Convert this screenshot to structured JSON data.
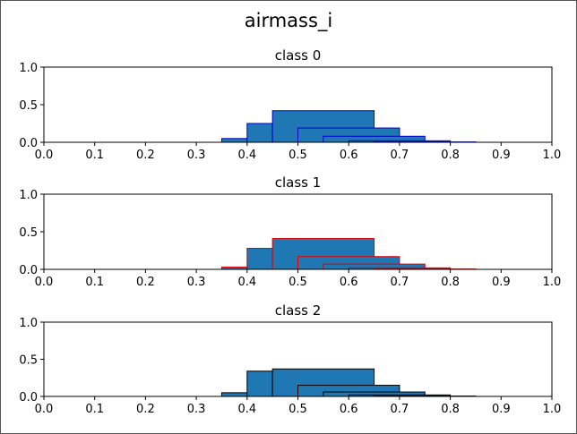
{
  "figure": {
    "suptitle": "airmass_i"
  },
  "chart_data": [
    {
      "type": "histogram",
      "title": "class 0",
      "xlim": [
        0,
        1
      ],
      "ylim": [
        0,
        1
      ],
      "xticks": [
        "0.0",
        "0.1",
        "0.2",
        "0.3",
        "0.4",
        "0.5",
        "0.6",
        "0.7",
        "0.8",
        "0.9",
        "1.0"
      ],
      "yticks": [
        "0.0",
        "0.5",
        "1.0"
      ],
      "fill_color": "#1f77b4",
      "edge_color": "#0000cd",
      "bars": [
        {
          "x0": 0.0,
          "x1": 0.05,
          "y": 0.0
        },
        {
          "x0": 0.05,
          "x1": 0.1,
          "y": 0.0
        },
        {
          "x0": 0.1,
          "x1": 0.15,
          "y": 0.0
        },
        {
          "x0": 0.15,
          "x1": 0.2,
          "y": 0.0
        },
        {
          "x0": 0.2,
          "x1": 0.25,
          "y": 0.0
        },
        {
          "x0": 0.25,
          "x1": 0.3,
          "y": 0.0
        },
        {
          "x0": 0.3,
          "x1": 0.35,
          "y": 0.0
        },
        {
          "x0": 0.35,
          "x1": 0.4,
          "y": 0.05
        },
        {
          "x0": 0.4,
          "x1": 0.45,
          "y": 0.25
        },
        {
          "x0": 0.45,
          "x1": 0.65,
          "y": 0.42
        },
        {
          "x0": 0.5,
          "x1": 0.7,
          "y": 0.19
        },
        {
          "x0": 0.55,
          "x1": 0.75,
          "y": 0.08
        },
        {
          "x0": 0.6,
          "x1": 0.8,
          "y": 0.02
        },
        {
          "x0": 0.65,
          "x1": 0.85,
          "y": 0.005
        },
        {
          "x0": 0.7,
          "x1": 0.9,
          "y": 0.0
        },
        {
          "x0": 0.75,
          "x1": 0.95,
          "y": 0.0
        },
        {
          "x0": 0.8,
          "x1": 1.0,
          "y": 0.0
        }
      ]
    },
    {
      "type": "histogram",
      "title": "class 1",
      "xlim": [
        0,
        1
      ],
      "ylim": [
        0,
        1
      ],
      "xticks": [
        "0.0",
        "0.1",
        "0.2",
        "0.3",
        "0.4",
        "0.5",
        "0.6",
        "0.7",
        "0.8",
        "0.9",
        "1.0"
      ],
      "yticks": [
        "0.0",
        "0.5",
        "1.0"
      ],
      "fill_color": "#1f77b4",
      "edge_color": "#e00000",
      "bars": [
        {
          "x0": 0.0,
          "x1": 0.05,
          "y": 0.0
        },
        {
          "x0": 0.05,
          "x1": 0.1,
          "y": 0.0
        },
        {
          "x0": 0.1,
          "x1": 0.15,
          "y": 0.0
        },
        {
          "x0": 0.15,
          "x1": 0.2,
          "y": 0.0
        },
        {
          "x0": 0.2,
          "x1": 0.25,
          "y": 0.0
        },
        {
          "x0": 0.25,
          "x1": 0.3,
          "y": 0.0
        },
        {
          "x0": 0.3,
          "x1": 0.35,
          "y": 0.0
        },
        {
          "x0": 0.35,
          "x1": 0.4,
          "y": 0.03
        },
        {
          "x0": 0.4,
          "x1": 0.45,
          "y": 0.28
        },
        {
          "x0": 0.45,
          "x1": 0.65,
          "y": 0.41
        },
        {
          "x0": 0.5,
          "x1": 0.7,
          "y": 0.17
        },
        {
          "x0": 0.55,
          "x1": 0.75,
          "y": 0.07
        },
        {
          "x0": 0.6,
          "x1": 0.8,
          "y": 0.02
        },
        {
          "x0": 0.65,
          "x1": 0.85,
          "y": 0.005
        },
        {
          "x0": 0.7,
          "x1": 0.9,
          "y": 0.0
        },
        {
          "x0": 0.75,
          "x1": 0.95,
          "y": 0.0
        },
        {
          "x0": 0.8,
          "x1": 1.0,
          "y": 0.0
        }
      ]
    },
    {
      "type": "histogram",
      "title": "class 2",
      "xlim": [
        0,
        1
      ],
      "ylim": [
        0,
        1
      ],
      "xticks": [
        "0.0",
        "0.1",
        "0.2",
        "0.3",
        "0.4",
        "0.5",
        "0.6",
        "0.7",
        "0.8",
        "0.9",
        "1.0"
      ],
      "yticks": [
        "0.0",
        "0.5",
        "1.0"
      ],
      "fill_color": "#1f77b4",
      "edge_color": "#000000",
      "bars": [
        {
          "x0": 0.0,
          "x1": 0.05,
          "y": 0.0
        },
        {
          "x0": 0.05,
          "x1": 0.1,
          "y": 0.0
        },
        {
          "x0": 0.1,
          "x1": 0.15,
          "y": 0.0
        },
        {
          "x0": 0.15,
          "x1": 0.2,
          "y": 0.0
        },
        {
          "x0": 0.2,
          "x1": 0.25,
          "y": 0.0
        },
        {
          "x0": 0.25,
          "x1": 0.3,
          "y": 0.0
        },
        {
          "x0": 0.3,
          "x1": 0.35,
          "y": 0.0
        },
        {
          "x0": 0.35,
          "x1": 0.4,
          "y": 0.05
        },
        {
          "x0": 0.4,
          "x1": 0.45,
          "y": 0.34
        },
        {
          "x0": 0.45,
          "x1": 0.65,
          "y": 0.37
        },
        {
          "x0": 0.5,
          "x1": 0.7,
          "y": 0.15
        },
        {
          "x0": 0.55,
          "x1": 0.75,
          "y": 0.06
        },
        {
          "x0": 0.6,
          "x1": 0.8,
          "y": 0.02
        },
        {
          "x0": 0.65,
          "x1": 0.85,
          "y": 0.005
        },
        {
          "x0": 0.7,
          "x1": 0.9,
          "y": 0.0
        },
        {
          "x0": 0.75,
          "x1": 0.95,
          "y": 0.0
        },
        {
          "x0": 0.8,
          "x1": 1.0,
          "y": 0.0
        }
      ]
    }
  ]
}
